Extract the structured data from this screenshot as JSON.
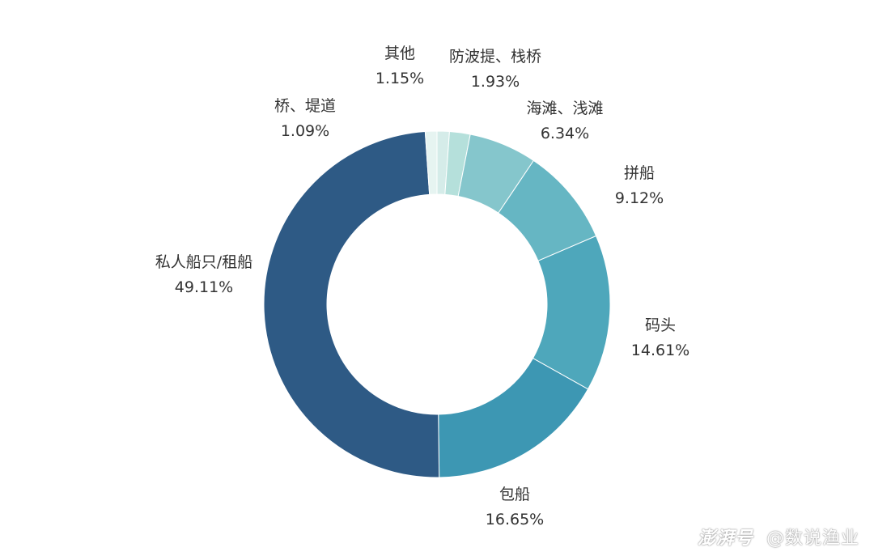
{
  "chart_data": {
    "type": "pie",
    "donut": true,
    "unit": "%",
    "slices": [
      {
        "label": "其他",
        "value": 1.15,
        "value_text": "1.15%",
        "color": "#d5ece9"
      },
      {
        "label": "防波提、栈桥",
        "value": 1.93,
        "value_text": "1.93%",
        "color": "#b5e0db"
      },
      {
        "label": "海滩、浅滩",
        "value": 6.34,
        "value_text": "6.34%",
        "color": "#85c6cc"
      },
      {
        "label": "拼船",
        "value": 9.12,
        "value_text": "9.12%",
        "color": "#66b6c3"
      },
      {
        "label": "码头",
        "value": 14.61,
        "value_text": "14.61%",
        "color": "#4ea7bb"
      },
      {
        "label": "包船",
        "value": 16.65,
        "value_text": "16.65%",
        "color": "#3d97b3"
      },
      {
        "label": "私人船只/租船",
        "value": 49.11,
        "value_text": "49.11%",
        "color": "#2e5a85"
      },
      {
        "label": "桥、堤道",
        "value": 1.09,
        "value_text": "1.09%",
        "color": "#e6f4f1"
      }
    ]
  },
  "watermark": {
    "brand": "澎湃号",
    "account": "@数说渔业"
  }
}
